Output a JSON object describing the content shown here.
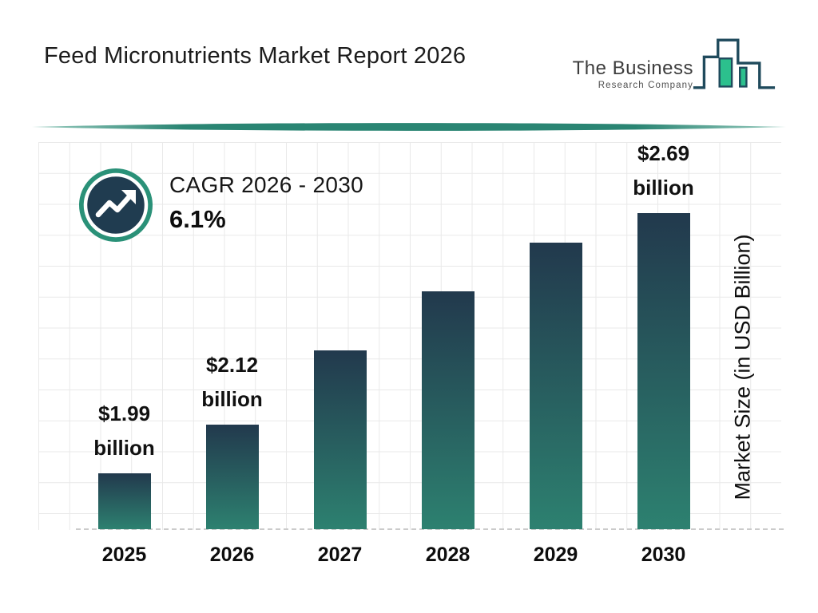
{
  "page": {
    "title": "Feed Micronutrients Market Report 2026"
  },
  "logo": {
    "name_line1": "The Business",
    "name_line2": "Research Company"
  },
  "cagr_callout": {
    "label": "CAGR 2026 - 2030",
    "value": "6.1%"
  },
  "chart_data": {
    "type": "bar",
    "title": "Feed Micronutrients Market Report 2026",
    "categories": [
      "2025",
      "2026",
      "2027",
      "2028",
      "2029",
      "2030"
    ],
    "values": [
      1.99,
      2.12,
      2.32,
      2.48,
      2.61,
      2.69
    ],
    "values_estimated_from_bar_heights": [
      false,
      false,
      true,
      true,
      true,
      false
    ],
    "data_labels": [
      {
        "value": "$1.99",
        "unit": "billion"
      },
      {
        "value": "$2.12",
        "unit": "billion"
      },
      null,
      null,
      null,
      {
        "value": "$2.69",
        "unit": "billion"
      }
    ],
    "xlabel": "",
    "ylabel": "Market Size (in USD Billion)",
    "ylim": [
      1.84,
      2.88
    ],
    "grid": true,
    "legend": false,
    "baseline_style": "dashed",
    "bar_gradient_top": "#22394d",
    "bar_gradient_bottom": "#2d8170"
  },
  "colors": {
    "accent_ring_green": "#2a9178",
    "divider_teal": "#2a8573",
    "badge_inner_navy": "#203c50",
    "logo_green": "#2cc08d",
    "logo_outline": "#1f4a5c",
    "grid_line": "#e9e9e9",
    "text_dark": "#141414"
  }
}
